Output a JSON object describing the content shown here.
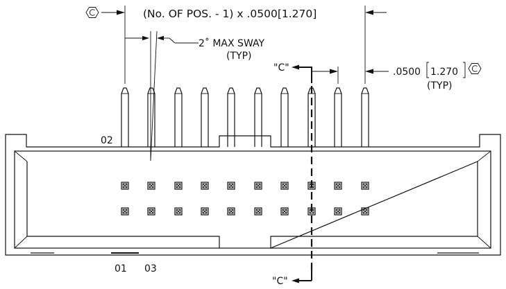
{
  "dimensions": {
    "pitch_formula": "(No. OF POS. - 1) x .0500[1.270]",
    "sway": "2˚ MAX SWAY",
    "sway_typ": "(TYP)",
    "pitch_value": ".0500",
    "pitch_metric": "1.270",
    "pitch_typ": "(TYP)"
  },
  "section": {
    "top_label": "\"C\"",
    "bottom_label": "\"C\""
  },
  "pins": {
    "label_02": "02",
    "label_01": "01",
    "label_03": "03"
  },
  "icons": {
    "flatness": "hexagon-c-symbol"
  }
}
